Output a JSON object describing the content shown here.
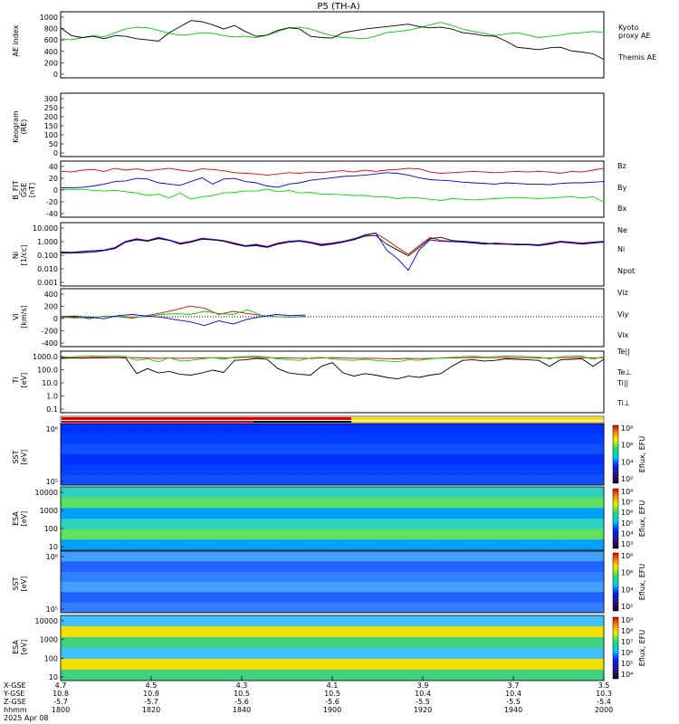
{
  "title": "P5 (TH-A)",
  "footer": {
    "row_labels": [
      "X-GSE",
      "Y-GSE",
      "Z-GSE",
      "hhmm",
      "2025 Apr 08"
    ],
    "ticks": [
      {
        "x": "4.7",
        "y": "10.8",
        "z": "-5.7",
        "t": "1800"
      },
      {
        "x": "4.5",
        "y": "10.8",
        "z": "-5.7",
        "t": "1820"
      },
      {
        "x": "4.3",
        "y": "10.5",
        "z": "-5.6",
        "t": "1840"
      },
      {
        "x": "4.1",
        "y": "10.5",
        "z": "-5.6",
        "t": "1900"
      },
      {
        "x": "3.9",
        "y": "10.4",
        "z": "-5.5",
        "t": "1920"
      },
      {
        "x": "3.7",
        "y": "10.4",
        "z": "-5.5",
        "t": "1940"
      },
      {
        "x": "3.5",
        "y": "10.3",
        "z": "-5.4",
        "t": "2000"
      }
    ]
  },
  "chart_data": [
    {
      "type": "line",
      "id": "ae",
      "ylabel": "AE index",
      "ylim": [
        0,
        1000
      ],
      "yticks": [
        "1000",
        "800",
        "600",
        "400",
        "200",
        "0"
      ],
      "series": [
        {
          "name": "Kyoto proxy AE",
          "legend": [
            "Kyoto",
            "proxy AE"
          ],
          "color": "#00c800",
          "values": [
            600,
            580,
            620,
            650,
            630,
            700,
            760,
            790,
            780,
            740,
            690,
            660,
            670,
            700,
            690,
            650,
            630,
            640,
            620,
            660,
            720,
            780,
            790,
            760,
            700,
            650,
            620,
            610,
            600,
            640,
            700,
            720,
            740,
            780,
            830,
            870,
            820,
            760,
            720,
            690,
            650,
            680,
            700,
            660,
            620,
            640,
            660,
            690,
            700,
            720,
            700
          ]
        },
        {
          "name": "Themis AE",
          "color": "#000000",
          "values": [
            780,
            650,
            620,
            640,
            600,
            650,
            640,
            600,
            580,
            560,
            700,
            800,
            900,
            880,
            830,
            760,
            820,
            720,
            640,
            660,
            740,
            780,
            760,
            640,
            620,
            610,
            700,
            730,
            760,
            780,
            800,
            820,
            840,
            800,
            780,
            790,
            760,
            700,
            680,
            650,
            640,
            560,
            460,
            440,
            420,
            450,
            460,
            400,
            380,
            350,
            260
          ]
        }
      ]
    },
    {
      "type": "heatmap",
      "id": "keogram",
      "ylabel": "Keogram",
      "ylabel2": "(RE)",
      "ylim": [
        0,
        300
      ],
      "yticks": [
        "300",
        "250",
        "200",
        "150",
        "100",
        "50",
        "0"
      ]
    },
    {
      "type": "line",
      "id": "bfield",
      "ylabel": "B_FIT",
      "ylabel2": "GSE",
      "ylabel3": "[nT]",
      "ylim": [
        -40,
        40
      ],
      "yticks": [
        "40",
        "20",
        "0",
        "-20",
        "-40"
      ],
      "series": [
        {
          "name": "Bz",
          "color": "#e00000",
          "values": [
            28,
            27,
            30,
            31,
            28,
            33,
            30,
            32,
            29,
            31,
            33,
            30,
            28,
            32,
            31,
            29,
            26,
            25,
            24,
            22,
            24,
            26,
            25,
            27,
            26,
            28,
            29,
            27,
            30,
            28,
            30,
            31,
            33,
            32,
            27,
            25,
            26,
            27,
            28,
            27,
            26,
            27,
            28,
            27,
            28,
            27,
            25,
            28,
            27,
            30,
            33
          ]
        },
        {
          "name": "By",
          "color": "#00dd00",
          "values": [
            0,
            -1,
            0,
            -2,
            -3,
            -2,
            -4,
            -6,
            -10,
            -8,
            -14,
            -6,
            -16,
            -12,
            -10,
            -6,
            -5,
            -3,
            -3,
            0,
            -4,
            -2,
            -6,
            -5,
            -8,
            -8,
            -9,
            -10,
            -10,
            -12,
            -12,
            -15,
            -13,
            -14,
            -16,
            -18,
            -15,
            -16,
            -17,
            -16,
            -15,
            -14,
            -13,
            -14,
            -15,
            -14,
            -13,
            -12,
            -14,
            -12,
            -20
          ]
        },
        {
          "name": "Bx",
          "color": "#0000dd",
          "values": [
            2,
            2,
            3,
            5,
            8,
            12,
            13,
            17,
            16,
            10,
            8,
            6,
            12,
            18,
            8,
            16,
            17,
            12,
            10,
            5,
            3,
            8,
            10,
            14,
            16,
            18,
            20,
            21,
            22,
            24,
            26,
            25,
            22,
            18,
            15,
            14,
            13,
            11,
            10,
            9,
            8,
            10,
            9,
            8,
            8,
            7,
            9,
            10,
            10,
            11,
            12
          ]
        }
      ]
    },
    {
      "type": "line",
      "id": "density",
      "ylabel": "Ni",
      "ylabel2": "[1/cc]",
      "ylim": [
        0.001,
        10
      ],
      "yscale": "log",
      "yticks": [
        "10.000",
        "1.000",
        "0.100",
        "0.010",
        "0.001"
      ],
      "series": [
        {
          "name": "Ne",
          "color": "#e00000",
          "values": [
            0.15,
            0.14,
            0.16,
            0.18,
            0.2,
            0.3,
            0.8,
            1.2,
            0.9,
            1.5,
            1.0,
            0.6,
            0.8,
            1.3,
            1.1,
            0.9,
            0.6,
            0.4,
            0.5,
            0.35,
            0.6,
            0.8,
            0.9,
            0.7,
            0.5,
            0.6,
            0.8,
            1.2,
            2.0,
            2.8,
            1.0,
            0.3,
            0.1,
            0.4,
            1.5,
            0.9,
            0.8,
            0.7,
            0.6,
            0.5,
            0.6,
            0.55,
            0.5,
            0.5,
            0.45,
            0.6,
            0.8,
            0.7,
            0.6,
            0.7,
            0.8
          ]
        },
        {
          "name": "Ni",
          "color": "#000000",
          "values": [
            0.12,
            0.12,
            0.13,
            0.14,
            0.18,
            0.25,
            0.7,
            1.0,
            0.8,
            1.2,
            0.9,
            0.5,
            0.7,
            1.1,
            1.0,
            0.8,
            0.5,
            0.35,
            0.4,
            0.3,
            0.5,
            0.7,
            0.8,
            0.6,
            0.4,
            0.5,
            0.7,
            1.0,
            1.8,
            2.0,
            0.5,
            0.2,
            0.08,
            0.3,
            1.2,
            1.5,
            0.9,
            0.8,
            0.7,
            0.6,
            0.5,
            0.5,
            0.45,
            0.45,
            0.4,
            0.5,
            0.7,
            0.6,
            0.5,
            0.6,
            0.7
          ]
        },
        {
          "name": "Npot",
          "color": "#0000dd",
          "values": [
            0.14,
            0.13,
            0.15,
            0.17,
            0.19,
            0.28,
            0.75,
            1.1,
            0.85,
            1.4,
            0.95,
            0.55,
            0.75,
            1.2,
            1.05,
            0.85,
            0.55,
            0.38,
            0.45,
            0.32,
            0.55,
            0.75,
            0.85,
            0.65,
            0.45,
            0.55,
            0.75,
            1.1,
            2.2,
            3.0,
            0.2,
            0.05,
            0.008,
            0.2,
            1.0,
            0.8,
            0.75,
            0.7,
            0.6,
            0.5,
            0.55,
            0.5,
            0.5,
            0.48,
            0.45,
            0.55,
            0.75,
            0.65,
            0.55,
            0.65,
            0.75
          ]
        }
      ]
    },
    {
      "type": "line",
      "id": "velocity",
      "ylabel": "Vi",
      "ylabel2": "[km/s]",
      "ylim": [
        -500,
        500
      ],
      "yticks": [
        "400",
        "200",
        "0",
        "-200",
        "-400"
      ],
      "series": [
        {
          "name": "Viz",
          "color": "#e00000",
          "values": [
            0,
            10,
            -20,
            30,
            20,
            -10,
            40,
            90,
            150,
            220,
            180,
            60,
            120,
            80,
            40,
            20,
            10,
            30
          ]
        },
        {
          "name": "Viy",
          "color": "#00cc00",
          "values": [
            10,
            -10,
            0,
            20,
            30,
            10,
            20,
            60,
            80,
            60,
            120,
            80,
            60,
            150,
            40,
            20,
            10,
            20
          ]
        },
        {
          "name": "Vix",
          "color": "#0000dd",
          "values": [
            20,
            30,
            10,
            -20,
            40,
            60,
            30,
            10,
            -40,
            -80,
            -150,
            -60,
            -120,
            -30,
            20,
            60,
            40,
            50
          ]
        }
      ]
    },
    {
      "type": "line",
      "id": "temperature",
      "ylabel": "Ti",
      "ylabel2": "[eV]",
      "ylim": [
        0.1,
        3000
      ],
      "yscale": "log",
      "yticks": [
        "1000.0",
        "100.0",
        "10.0",
        "1.0",
        "0.1"
      ],
      "series": [
        {
          "name": "Te||",
          "color": "#000000",
          "values": [
            1300,
            1400,
            1350,
            1400,
            1450,
            1500,
            1400,
            80,
            200,
            90,
            120,
            70,
            60,
            90,
            150,
            100,
            900,
            1000,
            1300,
            1100,
            200,
            90,
            70,
            60,
            300,
            600,
            90,
            50,
            80,
            60,
            40,
            30,
            50,
            40,
            60,
            80,
            300,
            900,
            1000,
            800,
            900,
            1200,
            1100,
            1000,
            900,
            300,
            1000,
            1100,
            1200,
            300,
            1100
          ]
        },
        {
          "name": "Te⊥",
          "color": "#e00000",
          "values": [
            1500,
            1500,
            1500,
            1550,
            1600,
            1600,
            1550,
            1500,
            1400,
            1300,
            1400,
            1300,
            1350,
            1400,
            1500,
            1450,
            1500,
            1600,
            1600,
            1500,
            1450,
            1400,
            1350,
            1300,
            1400,
            1500,
            1400,
            1300,
            1350,
            1300,
            1250,
            1200,
            1300,
            1250,
            1300,
            1350,
            1400,
            1500,
            1550,
            1500,
            1500,
            1550,
            1500,
            1500,
            1450,
            1400,
            1500,
            1500,
            1550,
            1400,
            1500
          ]
        },
        {
          "name": "Ti||",
          "color": "#00dd00",
          "values": [
            1800,
            1700,
            1900,
            2000,
            1900,
            2000,
            1800,
            900,
            1200,
            700,
            1500,
            800,
            900,
            1200,
            1500,
            1100,
            1700,
            1800,
            1900,
            1700,
            1200,
            1000,
            900,
            1400,
            1600,
            1200,
            1000,
            900,
            1100,
            900,
            800,
            700,
            1000,
            900,
            1200,
            1400,
            1600,
            1800,
            1900,
            1700,
            1800,
            2000,
            1900,
            1800,
            1700,
            1200,
            1800,
            1900,
            2000,
            1100,
            1900
          ]
        },
        {
          "name": "Ti⊥",
          "color": "#0000dd",
          "values": []
        }
      ]
    },
    {
      "type": "heatmap",
      "id": "sst-ion",
      "ylabel": "SST",
      "ylabel2": "[eV]",
      "yticks": [
        "10⁶",
        "10⁵"
      ],
      "cbar_label": "Eflux, EFU",
      "cbar_ticks": [
        "10⁸",
        "10⁶",
        "10⁴",
        "10²"
      ]
    },
    {
      "type": "heatmap",
      "id": "esa-ion",
      "ylabel": "ESA",
      "ylabel2": "[eV]",
      "yticks": [
        "10000",
        "1000",
        "100",
        "10"
      ],
      "cbar_label": "Eflux, EFU",
      "cbar_ticks": [
        "10⁸",
        "10⁷",
        "10⁶",
        "10⁵",
        "10⁴",
        "10³"
      ]
    },
    {
      "type": "heatmap",
      "id": "sst-elec",
      "ylabel": "SST",
      "ylabel2": "[eV]",
      "yticks": [
        "10⁶",
        "10⁵"
      ],
      "cbar_label": "Eflux, EFU",
      "cbar_ticks": [
        "10⁸",
        "10⁶",
        "10⁴",
        "10²"
      ]
    },
    {
      "type": "heatmap",
      "id": "esa-elec",
      "ylabel": "ESA",
      "ylabel2": "[eV]",
      "yticks": [
        "10000",
        "1000",
        "100",
        "10"
      ],
      "cbar_label": "Eflux, EFU",
      "cbar_ticks": [
        "10⁹",
        "10⁸",
        "10⁷",
        "10⁶",
        "10⁵",
        "10⁴"
      ]
    }
  ]
}
